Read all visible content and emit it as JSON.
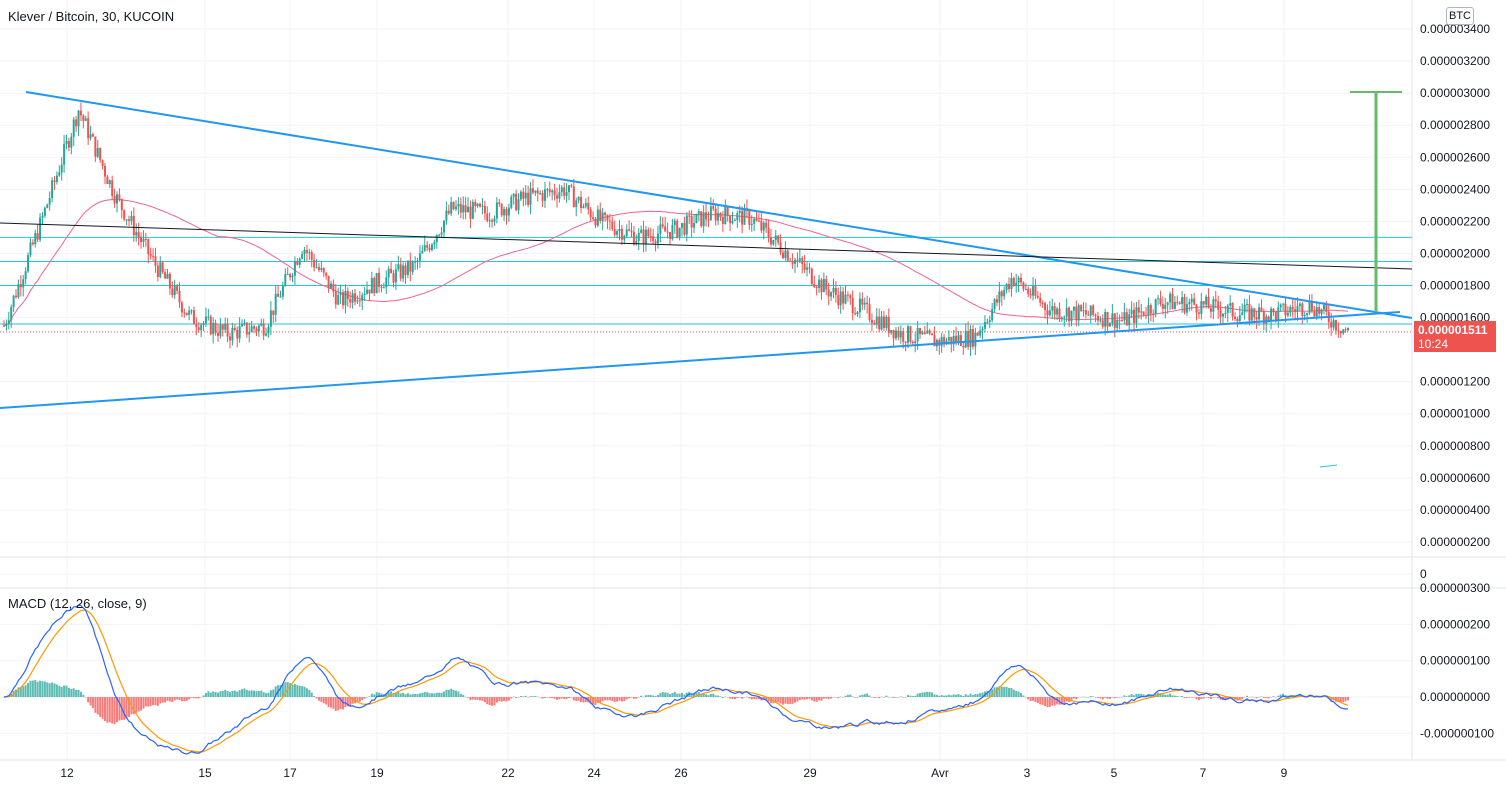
{
  "header": {
    "title": "Klever / Bitcoin, 30, KUCOIN",
    "currency": "BTC"
  },
  "macd": {
    "label": "MACD (12, 26, close, 9)"
  },
  "last_price": {
    "value": "0.000001511",
    "countdown": "10:24"
  },
  "colors": {
    "up": "#26a69a",
    "down": "#ef5350",
    "trendline": "#2196f3",
    "black_line": "#131722",
    "horizontal": "#26c6da",
    "ma": "#f06292",
    "target": "#66bb6a",
    "macd_line": "#2962ff",
    "signal_line": "#ff9800"
  },
  "chart_data": [
    {
      "type": "line",
      "title": "Klever / Bitcoin, 30, KUCOIN",
      "x_tick_labels": [
        "12",
        "15",
        "17",
        "19",
        "22",
        "24",
        "26",
        "29",
        "Avr",
        "3",
        "5",
        "7",
        "9"
      ],
      "y_tick_labels": [
        "0.000003400",
        "0.000003200",
        "0.000003000",
        "0.000002800",
        "0.000002600",
        "0.000002400",
        "0.000002200",
        "0.000002000",
        "0.000001800",
        "0.000001600",
        "0.000001200",
        "0.000001000",
        "0.000000800",
        "0.000000600",
        "0.000000400",
        "0.000000200",
        "0"
      ],
      "ylim": [
        0,
        3.5e-06
      ],
      "series": [
        {
          "x": [
            "10",
            "11",
            "11",
            "12",
            "13",
            "14",
            "14",
            "15",
            "16",
            "17",
            "18",
            "19",
            "20",
            "21",
            "22",
            "22",
            "23",
            "24",
            "25",
            "26",
            "26",
            "27",
            "28",
            "29",
            "30",
            "31",
            "Avr",
            "Avr",
            "3",
            "4",
            "5",
            "6",
            "6",
            "7",
            "8",
            "9",
            "10"
          ],
          "values": [
            1.55e-06,
            2.2e-06,
            2.9e-06,
            2.35e-06,
            1.95e-06,
            1.6e-06,
            1.5e-06,
            1.55e-06,
            2.05e-06,
            1.7e-06,
            1.82e-06,
            1.92e-06,
            2.28e-06,
            2.25e-06,
            2.35e-06,
            2.4e-06,
            2.2e-06,
            2.1e-06,
            2.15e-06,
            2.25e-06,
            2.22e-06,
            2e-06,
            1.78e-06,
            1.65e-06,
            1.5e-06,
            1.45e-06,
            1.48e-06,
            1.85e-06,
            1.65e-06,
            1.62e-06,
            1.58e-06,
            1.7e-06,
            1.68e-06,
            1.63e-06,
            1.62e-06,
            1.68e-06,
            1.51e-06
          ]
        }
      ]
    },
    {
      "type": "line",
      "title": "MACD (12, 26, close, 9)",
      "y_tick_labels": [
        "0.000000300",
        "0.000000200",
        "0.000000100",
        "0.000000000",
        "-0.000000100"
      ],
      "ylim": [
        -1.5e-07,
        3e-07
      ]
    }
  ]
}
